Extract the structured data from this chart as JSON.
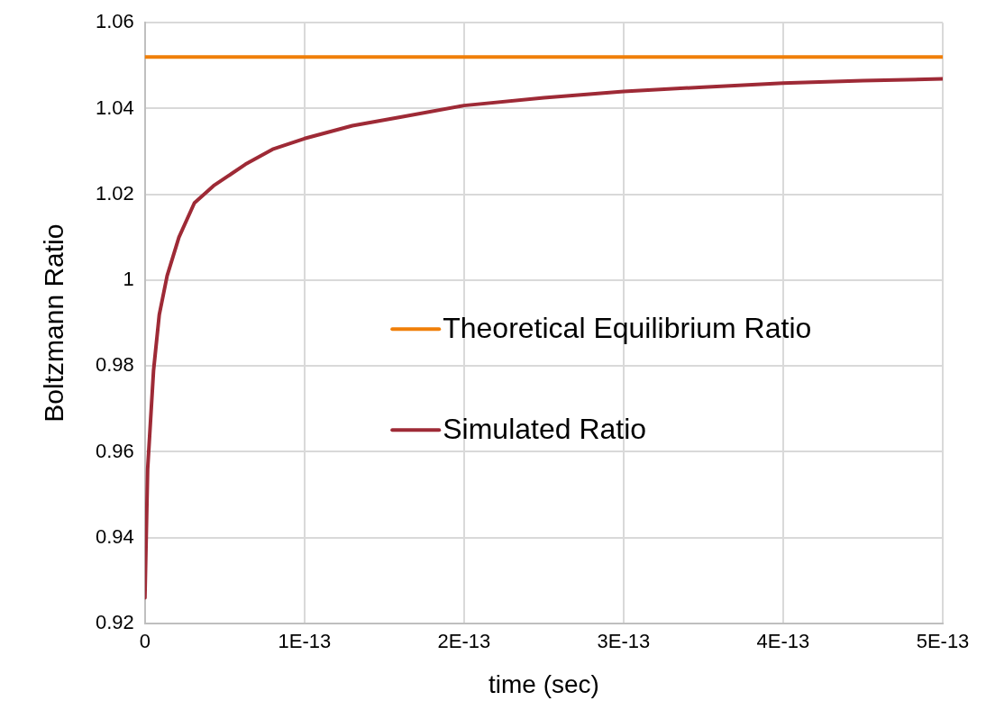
{
  "chart_data": {
    "type": "line",
    "xlabel": "time (sec)",
    "ylabel": "Boltzmann Ratio",
    "xlim": [
      0,
      5e-13
    ],
    "xticks": [
      0,
      {
        "value": 1e-13,
        "label": "1E-13"
      },
      {
        "value": 2e-13,
        "label": "2E-13"
      },
      {
        "value": 3e-13,
        "label": "3E-13"
      },
      {
        "value": 4e-13,
        "label": "4E-13"
      },
      {
        "value": 5e-13,
        "label": "5E-13"
      }
    ],
    "ylim": [
      0.92,
      1.06
    ],
    "yticks": [
      0.92,
      0.94,
      0.96,
      0.98,
      1,
      1.02,
      1.04,
      1.06
    ],
    "grid": true,
    "legend": "right",
    "marker": "none",
    "line_style": "solid",
    "series": [
      {
        "name": "Theoretical Equilibrium Ratio",
        "color": "#f07f09",
        "x": [
          0,
          5e-13
        ],
        "values": [
          1.052,
          1.052
        ]
      },
      {
        "name": "Simulated Ratio",
        "color": "#9e2a36",
        "x": [
          0,
          1.7e-15,
          5.4e-15,
          9e-15,
          1.39e-14,
          2.13e-14,
          3.1e-14,
          4.3e-14,
          6.3e-14,
          8e-14,
          1e-13,
          1.3e-13,
          1.6e-13,
          2e-13,
          2.5e-13,
          3e-13,
          3.5e-13,
          4e-13,
          4.5e-13,
          5e-13
        ],
        "values": [
          0.926,
          0.956,
          0.979,
          0.992,
          1.001,
          1.01,
          1.018,
          1.022,
          1.027,
          1.0305,
          1.033,
          1.036,
          1.038,
          1.0407,
          1.0425,
          1.044,
          1.045,
          1.0459,
          1.0465,
          1.0469
        ]
      }
    ]
  }
}
